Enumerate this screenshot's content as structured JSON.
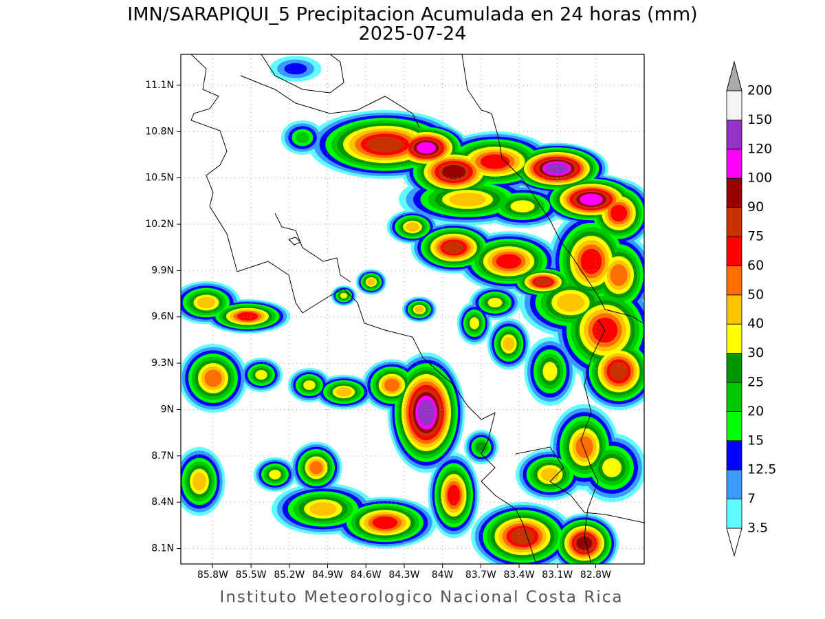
{
  "map": {
    "title": "IMN/SARAPIQUI_5 Precipitacion Acumulada en 24 horas (mm)",
    "subtitle": "2025-07-24",
    "footer": "Instituto Meteorologico Nacional Costa Rica",
    "xlim": [
      -86.05,
      -82.42
    ],
    "ylim": [
      8.0,
      11.3
    ],
    "xticks": [
      {
        "value": -85.8,
        "label": "85.8W"
      },
      {
        "value": -85.5,
        "label": "85.5W"
      },
      {
        "value": -85.2,
        "label": "85.2W"
      },
      {
        "value": -84.9,
        "label": "84.9W"
      },
      {
        "value": -84.6,
        "label": "84.6W"
      },
      {
        "value": -84.3,
        "label": "84.3W"
      },
      {
        "value": -84.0,
        "label": "84W"
      },
      {
        "value": -83.7,
        "label": "83.7W"
      },
      {
        "value": -83.4,
        "label": "83.4W"
      },
      {
        "value": -83.1,
        "label": "83.1W"
      },
      {
        "value": -82.8,
        "label": "82.8W"
      }
    ],
    "yticks": [
      {
        "value": 8.1,
        "label": "8.1N"
      },
      {
        "value": 8.4,
        "label": "8.4N"
      },
      {
        "value": 8.7,
        "label": "8.7N"
      },
      {
        "value": 9.0,
        "label": "9N"
      },
      {
        "value": 9.3,
        "label": "9.3N"
      },
      {
        "value": 9.6,
        "label": "9.6N"
      },
      {
        "value": 9.9,
        "label": "9.9N"
      },
      {
        "value": 10.2,
        "label": "10.2N"
      },
      {
        "value": 10.5,
        "label": "10.5N"
      },
      {
        "value": 10.8,
        "label": "10.8N"
      },
      {
        "value": 11.1,
        "label": "11.1N"
      }
    ],
    "grid": true,
    "colorbar": {
      "levels": [
        3.5,
        7,
        12.5,
        15,
        20,
        25,
        30,
        40,
        50,
        60,
        75,
        90,
        100,
        120,
        150,
        200
      ],
      "colors": [
        "#ffffff",
        "#60fcff",
        "#3c9bff",
        "#0000ff",
        "#00ff00",
        "#00c800",
        "#009600",
        "#ffff00",
        "#ffc400",
        "#ff6e00",
        "#ff0000",
        "#c83200",
        "#960000",
        "#ff00ff",
        "#9632c8",
        "#f5f5f5",
        "#aaaaaa"
      ]
    }
  }
}
